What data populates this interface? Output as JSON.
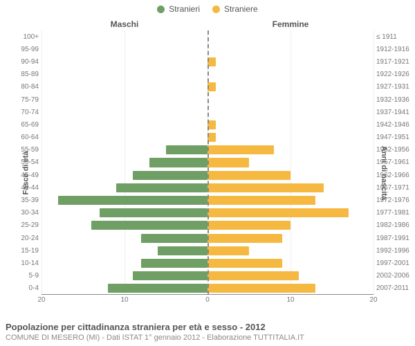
{
  "chart": {
    "type": "population-pyramid",
    "legend": [
      {
        "label": "Stranieri",
        "color": "#6f9f64"
      },
      {
        "label": "Straniere",
        "color": "#f5b942"
      }
    ],
    "column_headers": {
      "left": "Maschi",
      "right": "Femmine"
    },
    "y_axis_left": {
      "title": "Fasce di età"
    },
    "y_axis_right": {
      "title": "Anni di nascita"
    },
    "x_axis": {
      "max": 20,
      "ticks": [
        20,
        10,
        0,
        10,
        20
      ]
    },
    "rows": [
      {
        "age": "100+",
        "birth": "≤ 1911",
        "m": 0,
        "f": 0
      },
      {
        "age": "95-99",
        "birth": "1912-1916",
        "m": 0,
        "f": 0
      },
      {
        "age": "90-94",
        "birth": "1917-1921",
        "m": 0,
        "f": 1
      },
      {
        "age": "85-89",
        "birth": "1922-1926",
        "m": 0,
        "f": 0
      },
      {
        "age": "80-84",
        "birth": "1927-1931",
        "m": 0,
        "f": 1
      },
      {
        "age": "75-79",
        "birth": "1932-1936",
        "m": 0,
        "f": 0
      },
      {
        "age": "70-74",
        "birth": "1937-1941",
        "m": 0,
        "f": 0
      },
      {
        "age": "65-69",
        "birth": "1942-1946",
        "m": 0,
        "f": 1
      },
      {
        "age": "60-64",
        "birth": "1947-1951",
        "m": 0,
        "f": 1
      },
      {
        "age": "55-59",
        "birth": "1952-1956",
        "m": 5,
        "f": 8
      },
      {
        "age": "50-54",
        "birth": "1957-1961",
        "m": 7,
        "f": 5
      },
      {
        "age": "45-49",
        "birth": "1962-1966",
        "m": 9,
        "f": 10
      },
      {
        "age": "40-44",
        "birth": "1967-1971",
        "m": 11,
        "f": 14
      },
      {
        "age": "35-39",
        "birth": "1972-1976",
        "m": 18,
        "f": 13
      },
      {
        "age": "30-34",
        "birth": "1977-1981",
        "m": 13,
        "f": 17
      },
      {
        "age": "25-29",
        "birth": "1982-1986",
        "m": 14,
        "f": 10
      },
      {
        "age": "20-24",
        "birth": "1987-1991",
        "m": 8,
        "f": 9
      },
      {
        "age": "15-19",
        "birth": "1992-1996",
        "m": 6,
        "f": 5
      },
      {
        "age": "10-14",
        "birth": "1997-2001",
        "m": 8,
        "f": 9
      },
      {
        "age": "5-9",
        "birth": "2002-2006",
        "m": 9,
        "f": 11
      },
      {
        "age": "0-4",
        "birth": "2007-2011",
        "m": 12,
        "f": 13
      }
    ],
    "colors": {
      "male": "#6f9f64",
      "female": "#f5b942",
      "grid": "#eeeeee",
      "axis": "#888888",
      "background": "#ffffff"
    },
    "title": "Popolazione per cittadinanza straniera per età e sesso - 2012",
    "subtitle": "COMUNE DI MESERO (MI) - Dati ISTAT 1° gennaio 2012 - Elaborazione TUTTITALIA.IT"
  }
}
